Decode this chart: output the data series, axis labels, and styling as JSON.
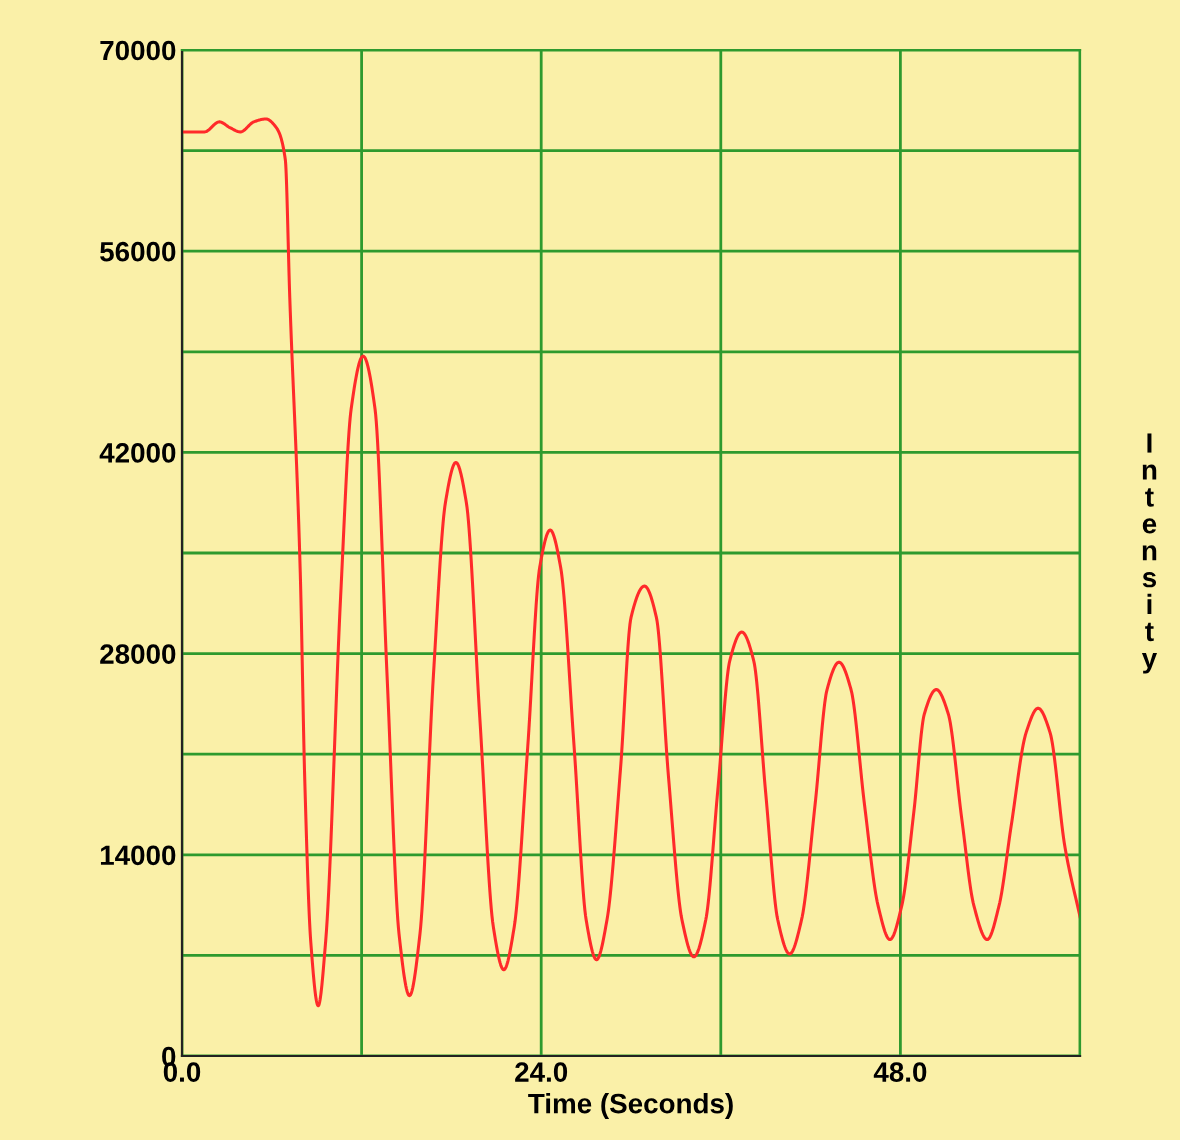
{
  "chart_data": {
    "type": "line",
    "xlabel": "Time (Seconds)",
    "ylabel": "Intensity",
    "x": [
      0,
      1.5,
      2.5,
      3.2,
      3.9,
      4.8,
      5.6,
      6.3,
      6.9,
      7.2,
      7.9,
      8.2,
      8.6,
      9.1,
      9.6,
      10.6,
      11.3,
      12.1,
      12.9,
      13.7,
      14.5,
      15.2,
      15.9,
      16.8,
      17.6,
      18.3,
      19.0,
      19.9,
      20.8,
      21.5,
      22.2,
      23.1,
      23.9,
      24.6,
      25.3,
      26.2,
      27.0,
      27.7,
      28.4,
      29.3,
      30.0,
      30.9,
      31.7,
      32.5,
      33.4,
      34.2,
      35.0,
      35.8,
      36.6,
      37.4,
      38.2,
      39.0,
      39.8,
      40.6,
      41.4,
      42.3,
      43.1,
      43.9,
      44.7,
      45.6,
      46.5,
      47.3,
      48.1,
      48.9,
      49.6,
      50.4,
      51.2,
      52.1,
      52.9,
      53.8,
      54.6,
      55.4,
      56.4,
      57.2,
      58.0,
      59.0,
      60.0
    ],
    "series": [
      {
        "color": "#ff2a2a",
        "values": [
          64300,
          64300,
          65000,
          64600,
          64300,
          65000,
          65200,
          64600,
          62400,
          52800,
          33700,
          19300,
          8000,
          3500,
          8000,
          32000,
          45000,
          48700,
          45000,
          26500,
          8500,
          4200,
          8500,
          26500,
          38500,
          41300,
          38500,
          23500,
          9000,
          6000,
          9000,
          21500,
          34000,
          36600,
          34000,
          21500,
          9500,
          6700,
          9500,
          20000,
          30500,
          32700,
          30500,
          19500,
          9500,
          6900,
          9500,
          18500,
          27500,
          29500,
          27500,
          18300,
          9500,
          7100,
          9500,
          17500,
          25500,
          27400,
          25500,
          17500,
          10500,
          8100,
          10500,
          17000,
          23800,
          25500,
          23800,
          16500,
          10500,
          8100,
          10500,
          16000,
          22500,
          24200,
          22500,
          14500,
          9700
        ]
      }
    ],
    "xlim": [
      0,
      60
    ],
    "ylim": [
      0,
      70000
    ],
    "xticks": [
      {
        "value": 0,
        "label": "0.0"
      },
      {
        "value": 12,
        "label": null
      },
      {
        "value": 24,
        "label": "24.0"
      },
      {
        "value": 36,
        "label": null
      },
      {
        "value": 48,
        "label": "48.0"
      },
      {
        "value": 60,
        "label": null
      }
    ],
    "yticks": [
      0,
      {
        "value": 7000,
        "label": null
      },
      14000,
      {
        "value": 21000,
        "label": null
      },
      28000,
      {
        "value": 35000,
        "label": null
      },
      42000,
      {
        "value": 49000,
        "label": null
      },
      56000,
      {
        "value": 63000,
        "label": null
      },
      70000
    ],
    "grid": true,
    "marker": "none",
    "line_style": "solid"
  }
}
